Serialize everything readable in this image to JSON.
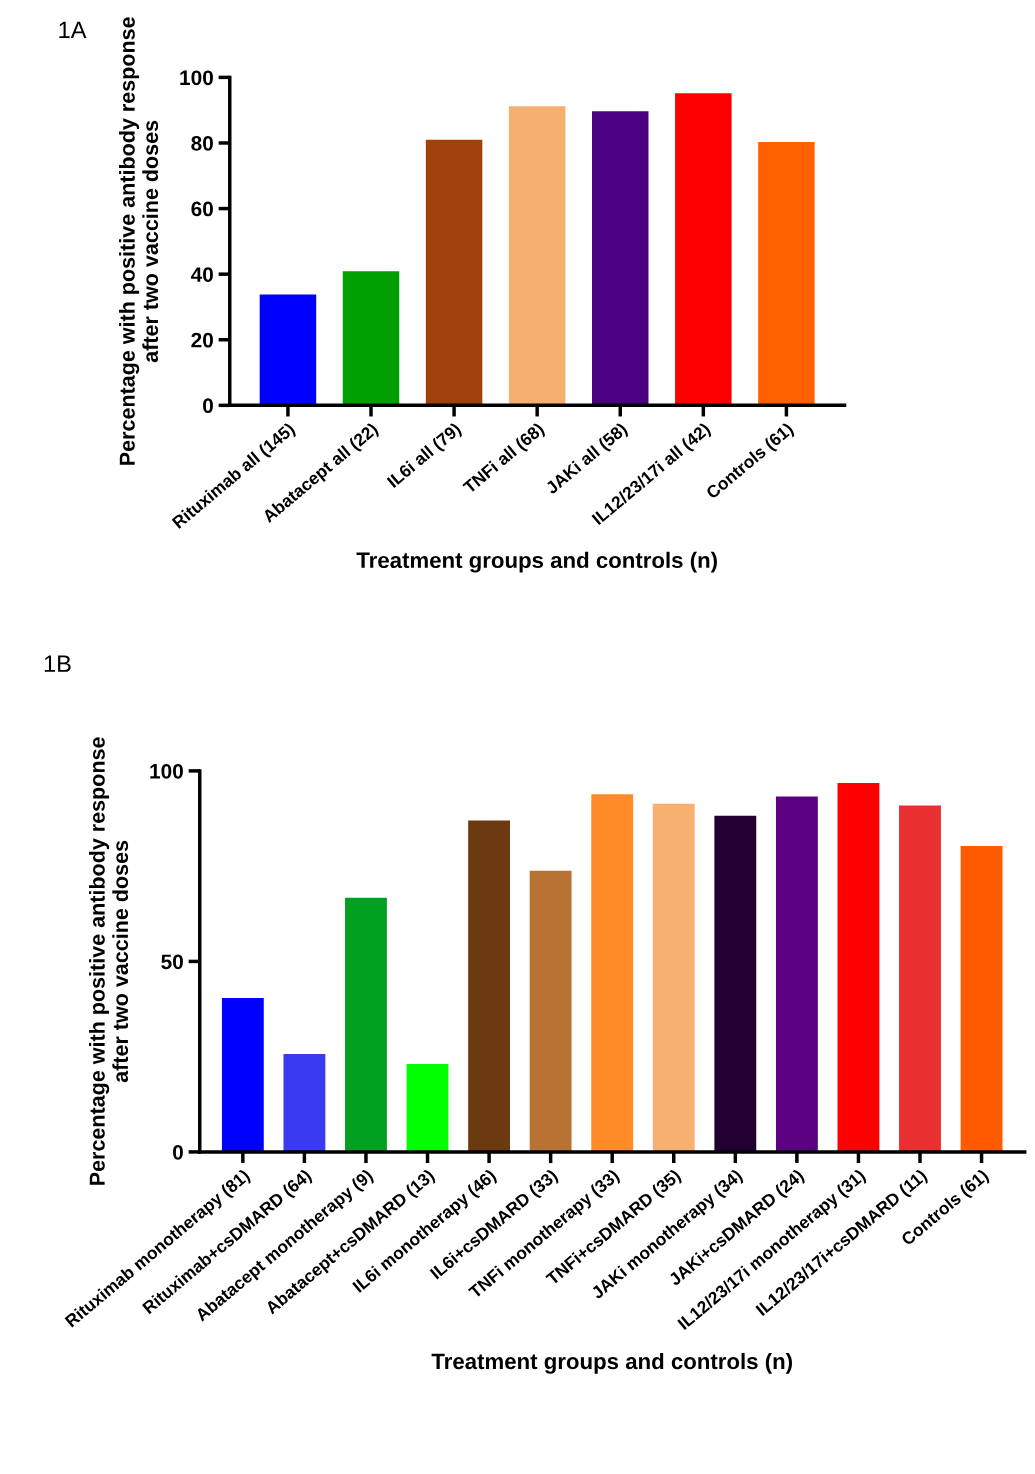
{
  "chart_data": [
    {
      "type": "bar",
      "title": "1A",
      "xlabel": "Treatment groups and controls (n)",
      "ylabel": "Percentage with positive antibody response after two vaccine doses",
      "categories": [
        "Rituximab all (145)",
        "Abatacept all (22)",
        "IL6i all (79)",
        "TNFi all (68)",
        "JAKi all (58)",
        "IL12/23/17i all (42)",
        "Controls (61)"
      ],
      "values": [
        33.8,
        40.9,
        81.0,
        91.2,
        89.7,
        95.2,
        80.3
      ],
      "colors": [
        "#0000ff",
        "#00a000",
        "#a0400a",
        "#f5b070",
        "#4b0082",
        "#ff0000",
        "#ff6000"
      ],
      "ylim": [
        0,
        100
      ],
      "yticks": [
        0,
        20,
        40,
        60,
        80,
        100
      ],
      "grid": false,
      "legend": false
    },
    {
      "type": "bar",
      "title": "1B",
      "xlabel": "Treatment groups and controls (n)",
      "ylabel": "Percentage with positive antibody response after two vaccine doses",
      "categories": [
        "Rituximab monotherapy (81)",
        "Rituximab+csDMARD (64)",
        "Abatacept monotherapy (9)",
        "Abatacept+csDMARD (13)",
        "IL6i monotherapy (46)",
        "IL6i+csDMARD (33)",
        "TNFi monotherapy (33)",
        "TNFi+csDMARD (35)",
        "JAKi monotherapy (34)",
        "JAKi+csDMARD (24)",
        "IL12/23/17i monotherapy (31)",
        "IL12/23/17i+csDMARD (11)",
        "Controls (61)"
      ],
      "values": [
        40.4,
        25.7,
        66.7,
        23.1,
        87.0,
        73.8,
        93.9,
        91.4,
        88.2,
        93.3,
        96.8,
        90.9,
        80.3
      ],
      "colors": [
        "#0000ff",
        "#3a3af0",
        "#00a020",
        "#00ff00",
        "#6b3a10",
        "#b87333",
        "#ff8c28",
        "#f8b070",
        "#200030",
        "#5a0080",
        "#ff0000",
        "#e83030",
        "#ff5a00"
      ],
      "ylim": [
        0,
        100
      ],
      "yticks": [
        0,
        50,
        100
      ],
      "grid": false,
      "legend": false
    }
  ]
}
